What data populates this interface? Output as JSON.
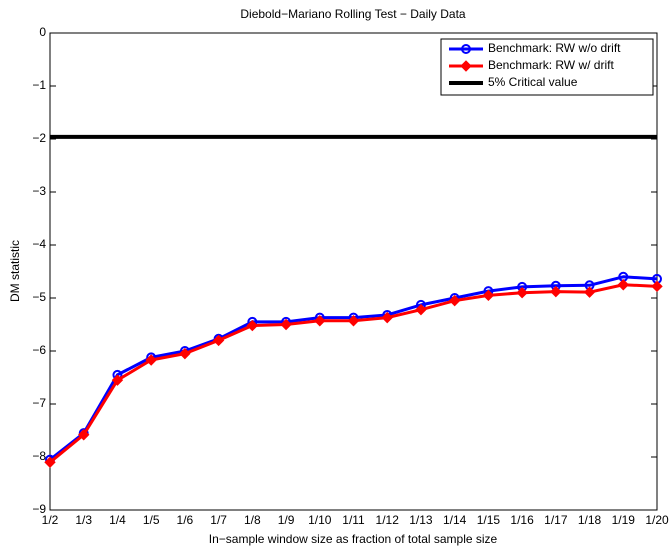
{
  "chart_data": {
    "type": "line",
    "title": "Diebold−Mariano Rolling Test − Daily Data",
    "x_label": "In−sample window size as fraction of total sample size",
    "y_label": "DM statistic",
    "categories": [
      "1/2",
      "1/3",
      "1/4",
      "1/5",
      "1/6",
      "1/7",
      "1/8",
      "1/9",
      "1/10",
      "1/11",
      "1/12",
      "1/13",
      "1/14",
      "1/15",
      "1/16",
      "1/17",
      "1/18",
      "1/19",
      "1/20"
    ],
    "series": [
      {
        "name": "Benchmark: RW w/o drift",
        "color": "#0000ff",
        "marker": "circle",
        "values": [
          -8.05,
          -7.55,
          -6.45,
          -6.12,
          -6.0,
          -5.77,
          -5.45,
          -5.45,
          -5.37,
          -5.37,
          -5.32,
          -5.13,
          -5.0,
          -4.87,
          -4.79,
          -4.77,
          -4.76,
          -4.6,
          -4.64
        ]
      },
      {
        "name": "Benchmark: RW w/ drift",
        "color": "#ff0000",
        "marker": "diamond",
        "values": [
          -8.1,
          -7.58,
          -6.55,
          -6.17,
          -6.05,
          -5.8,
          -5.52,
          -5.5,
          -5.43,
          -5.43,
          -5.37,
          -5.22,
          -5.05,
          -4.95,
          -4.9,
          -4.88,
          -4.89,
          -4.75,
          -4.78
        ]
      }
    ],
    "reference_line": {
      "name": "5% Critical value",
      "color": "#000000",
      "value": -1.96
    },
    "ylim": [
      -9,
      0
    ],
    "yticks": [
      0,
      {
        "value": -1,
        "label": "−1"
      },
      {
        "value": -2,
        "label": "−2"
      },
      {
        "value": -3,
        "label": "−3"
      },
      {
        "value": -4,
        "label": "−4"
      },
      {
        "value": -5,
        "label": "−5"
      },
      {
        "value": -6,
        "label": "−6"
      },
      {
        "value": -7,
        "label": "−7"
      },
      {
        "value": -8,
        "label": "−8"
      },
      {
        "value": -9,
        "label": "−9"
      }
    ],
    "legend": "upper right",
    "grid": false
  }
}
